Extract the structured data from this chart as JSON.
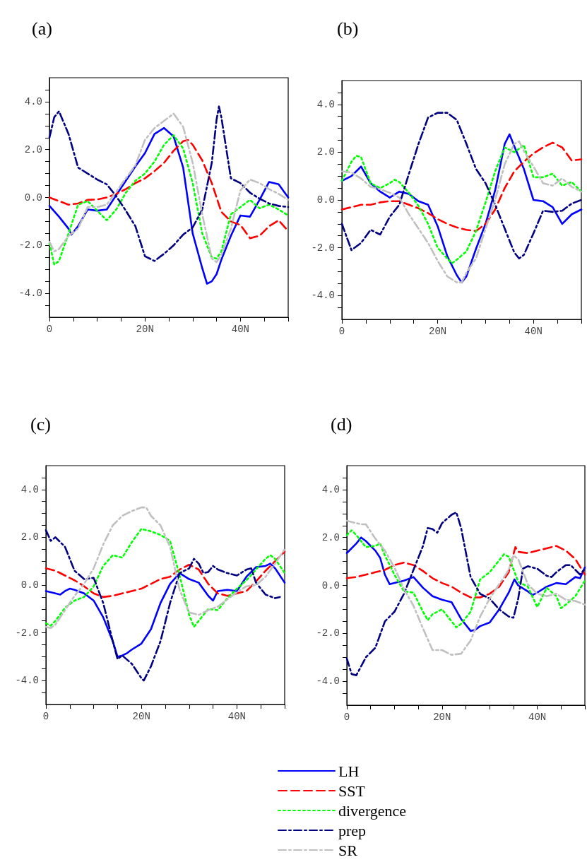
{
  "chart_data": [
    {
      "type": "line",
      "title": "(a)",
      "xlim": [
        0,
        50
      ],
      "ylim": [
        -5,
        5
      ],
      "xticks": [
        {
          "value": 0,
          "label": "0"
        },
        {
          "value": 5,
          "label": null
        },
        {
          "value": 10,
          "label": null
        },
        {
          "value": 15,
          "label": null
        },
        {
          "value": 20,
          "label": "20N"
        },
        {
          "value": 25,
          "label": null
        },
        {
          "value": 30,
          "label": null
        },
        {
          "value": 35,
          "label": null
        },
        {
          "value": 40,
          "label": "40N"
        },
        {
          "value": 45,
          "label": null
        },
        {
          "value": 50,
          "label": null
        }
      ],
      "yticks": [
        {
          "value": -4.5,
          "label": null
        },
        {
          "value": -4,
          "label": "-4.0"
        },
        {
          "value": -3.5,
          "label": null
        },
        {
          "value": -3,
          "label": null
        },
        {
          "value": -2.5,
          "label": null
        },
        {
          "value": -2,
          "label": "-2.0"
        },
        {
          "value": -1.5,
          "label": null
        },
        {
          "value": -1,
          "label": null
        },
        {
          "value": -0.5,
          "label": null
        },
        {
          "value": 0,
          "label": "0.0"
        },
        {
          "value": 0.5,
          "label": null
        },
        {
          "value": 1,
          "label": null
        },
        {
          "value": 1.5,
          "label": null
        },
        {
          "value": 2,
          "label": "2.0"
        },
        {
          "value": 2.5,
          "label": null
        },
        {
          "value": 3,
          "label": null
        },
        {
          "value": 3.5,
          "label": null
        },
        {
          "value": 4,
          "label": "4.0"
        },
        {
          "value": 4.5,
          "label": null
        }
      ],
      "grid": false,
      "legend": false,
      "series": [
        {
          "color": "#0000ff",
          "line_style": "solid",
          "x": [
            0,
            2,
            4,
            4.6,
            6,
            8,
            10,
            12,
            14,
            16,
            18,
            20,
            22,
            24,
            26,
            28,
            30,
            32,
            33,
            34,
            35,
            36,
            38,
            40,
            42,
            44,
            46,
            48,
            50
          ],
          "values": [
            -0.35,
            -0.8,
            -1.3,
            -1.55,
            -1.2,
            -0.5,
            -0.55,
            -0.5,
            0.1,
            0.7,
            1.3,
            1.85,
            2.65,
            2.9,
            2.55,
            1.25,
            -1.5,
            -2.95,
            -3.6,
            -3.5,
            -3.2,
            -2.6,
            -1.6,
            -0.75,
            -0.8,
            -0.1,
            0.65,
            0.55,
            0.0
          ]
        },
        {
          "color": "#ff0000",
          "line_style": "dashed",
          "x": [
            0,
            2,
            4,
            6,
            8,
            10,
            12,
            14,
            16,
            18,
            20,
            22,
            24,
            26,
            28,
            29,
            30,
            32,
            34,
            36,
            38,
            40,
            42,
            44,
            46,
            48,
            50
          ],
          "values": [
            0,
            -0.15,
            -0.3,
            -0.25,
            -0.1,
            -0.08,
            0,
            0.15,
            0.35,
            0.6,
            0.8,
            1.1,
            1.45,
            1.95,
            2.35,
            2.4,
            2.2,
            1.55,
            0.6,
            -0.6,
            -1.0,
            -1.15,
            -1.7,
            -1.6,
            -1.2,
            -0.95,
            -1.4
          ]
        },
        {
          "color": "#00ff00",
          "line_style": "dotted",
          "x": [
            0,
            1,
            2,
            4,
            6,
            8,
            10,
            12,
            14,
            16,
            18,
            20,
            22,
            24,
            26,
            28,
            30,
            32,
            34,
            35,
            36,
            38,
            40,
            42,
            44,
            46,
            48,
            50
          ],
          "values": [
            -1.9,
            -2.8,
            -2.65,
            -1.5,
            -0.3,
            -0.15,
            -0.55,
            -0.95,
            -0.5,
            0.2,
            0.7,
            1.0,
            1.5,
            2.2,
            2.6,
            2.05,
            0.6,
            -1.5,
            -2.5,
            -2.55,
            -2.25,
            -0.7,
            -0.4,
            -0.1,
            -0.45,
            -0.3,
            -0.5,
            -0.75
          ]
        },
        {
          "color": "#000080",
          "line_style": "dashdot",
          "x": [
            0,
            1,
            2,
            4,
            6,
            8,
            10,
            12,
            14,
            16,
            18,
            20,
            22,
            24,
            26,
            28,
            30,
            32,
            34,
            35,
            35.5,
            36,
            38,
            40,
            42,
            44,
            46,
            48,
            50
          ],
          "values": [
            2.5,
            3.35,
            3.6,
            2.65,
            1.25,
            1.0,
            0.75,
            0.55,
            0.05,
            -0.55,
            -1.2,
            -2.45,
            -2.65,
            -2.35,
            -2.0,
            -1.55,
            -1.25,
            -0.5,
            1.45,
            3.25,
            3.8,
            3.35,
            0.8,
            0.6,
            0.2,
            -0.05,
            -0.25,
            -0.35,
            -0.4
          ]
        },
        {
          "color": "#c0c0c0",
          "line_style": "dashdot",
          "x": [
            0,
            1,
            2,
            4,
            6,
            8,
            10,
            12,
            14,
            16,
            18,
            20,
            22,
            24,
            26,
            28,
            30,
            32,
            34,
            35,
            36,
            38,
            40,
            42,
            44,
            46,
            48,
            50
          ],
          "values": [
            -1.85,
            -2.25,
            -2.15,
            -1.6,
            -1.3,
            -0.4,
            -0.4,
            -0.3,
            0.25,
            0.8,
            1.35,
            2.4,
            2.9,
            3.2,
            3.5,
            2.95,
            1.45,
            -0.7,
            -2.55,
            -2.7,
            -2.4,
            -1.3,
            0.3,
            0.75,
            0.6,
            0.35,
            0.15,
            -0.1
          ]
        }
      ]
    },
    {
      "type": "line",
      "title": "(b)",
      "xlim": [
        0,
        50
      ],
      "ylim": [
        -5,
        5
      ],
      "xticks": [
        {
          "value": 0,
          "label": "0"
        },
        {
          "value": 5,
          "label": null
        },
        {
          "value": 10,
          "label": null
        },
        {
          "value": 15,
          "label": null
        },
        {
          "value": 20,
          "label": "20N"
        },
        {
          "value": 25,
          "label": null
        },
        {
          "value": 30,
          "label": null
        },
        {
          "value": 35,
          "label": null
        },
        {
          "value": 40,
          "label": "40N"
        },
        {
          "value": 45,
          "label": null
        },
        {
          "value": 50,
          "label": null
        }
      ],
      "yticks": [
        {
          "value": -4.5,
          "label": null
        },
        {
          "value": -4,
          "label": "-4.0"
        },
        {
          "value": -3.5,
          "label": null
        },
        {
          "value": -3,
          "label": null
        },
        {
          "value": -2.5,
          "label": null
        },
        {
          "value": -2,
          "label": "-2.0"
        },
        {
          "value": -1.5,
          "label": null
        },
        {
          "value": -1,
          "label": null
        },
        {
          "value": -0.5,
          "label": null
        },
        {
          "value": 0,
          "label": "0.0"
        },
        {
          "value": 0.5,
          "label": null
        },
        {
          "value": 1,
          "label": null
        },
        {
          "value": 1.5,
          "label": null
        },
        {
          "value": 2,
          "label": "2.0"
        },
        {
          "value": 2.5,
          "label": null
        },
        {
          "value": 3,
          "label": null
        },
        {
          "value": 3.5,
          "label": null
        },
        {
          "value": 4,
          "label": "4.0"
        },
        {
          "value": 4.5,
          "label": null
        }
      ],
      "grid": false,
      "legend": false,
      "series": [
        {
          "color": "#0000ff",
          "line_style": "solid",
          "x": [
            0,
            2,
            4,
            6,
            8,
            10,
            12,
            14,
            16,
            18,
            20,
            22,
            24,
            25,
            26,
            28,
            30,
            32,
            34,
            35,
            36,
            38,
            40,
            42,
            44,
            46,
            48,
            50
          ],
          "values": [
            0.8,
            1.0,
            1.4,
            0.7,
            0.35,
            0.1,
            0.35,
            0.25,
            -0.05,
            -0.2,
            -1.1,
            -2.35,
            -3.15,
            -3.45,
            -3.2,
            -2.05,
            -1.0,
            0.4,
            2.35,
            2.75,
            2.25,
            1.3,
            0.0,
            -0.05,
            -0.3,
            -1.0,
            -0.6,
            -0.4
          ]
        },
        {
          "color": "#ff0000",
          "line_style": "dashed",
          "x": [
            0,
            2,
            4,
            6,
            8,
            10,
            12,
            14,
            16,
            18,
            20,
            22,
            24,
            26,
            28,
            30,
            32,
            34,
            36,
            38,
            40,
            42,
            44,
            46,
            48,
            50
          ],
          "values": [
            -0.4,
            -0.3,
            -0.2,
            -0.2,
            -0.1,
            -0.05,
            -0.05,
            -0.2,
            -0.35,
            -0.55,
            -0.8,
            -1.0,
            -1.15,
            -1.25,
            -1.3,
            -1.0,
            -0.4,
            0.5,
            1.2,
            1.6,
            1.95,
            2.2,
            2.4,
            2.2,
            1.65,
            1.7
          ]
        },
        {
          "color": "#00ff00",
          "line_style": "dotted",
          "x": [
            0,
            2,
            3,
            4,
            6,
            8,
            10,
            11,
            12,
            14,
            16,
            18,
            20,
            22,
            23,
            24,
            26,
            28,
            30,
            32,
            34,
            36,
            38,
            40,
            42,
            44,
            46,
            48,
            50
          ],
          "values": [
            0.8,
            1.6,
            1.85,
            1.8,
            0.7,
            0.5,
            0.7,
            0.85,
            0.75,
            0.3,
            -0.25,
            -1.0,
            -2.0,
            -2.45,
            -2.65,
            -2.5,
            -2.15,
            -1.3,
            -0.1,
            1.2,
            2.2,
            2.0,
            2.3,
            0.95,
            0.95,
            1.1,
            0.6,
            0.75,
            0.35
          ]
        },
        {
          "color": "#000080",
          "line_style": "dashdot",
          "x": [
            0,
            2,
            4,
            6,
            8,
            10,
            12,
            14,
            16,
            18,
            20,
            22,
            24,
            26,
            28,
            30,
            32,
            34,
            36,
            37,
            38,
            40,
            42,
            44,
            46,
            48,
            50
          ],
          "values": [
            -1.0,
            -2.1,
            -1.8,
            -1.25,
            -1.45,
            -0.7,
            -0.2,
            1.1,
            2.35,
            3.45,
            3.65,
            3.65,
            3.35,
            2.35,
            1.3,
            0.7,
            -0.2,
            -1.2,
            -2.2,
            -2.45,
            -2.3,
            -1.4,
            -0.45,
            -0.5,
            -0.45,
            -0.15,
            0.0
          ]
        },
        {
          "color": "#c0c0c0",
          "line_style": "dashdot",
          "x": [
            0,
            2,
            4,
            6,
            8,
            10,
            12,
            14,
            16,
            18,
            20,
            22,
            24,
            25,
            26,
            28,
            30,
            32,
            34,
            36,
            37,
            38,
            40,
            42,
            44,
            46,
            48,
            50
          ],
          "values": [
            1.2,
            1.15,
            0.9,
            0.55,
            0.45,
            0.3,
            0.1,
            -0.6,
            -1.2,
            -1.8,
            -2.55,
            -3.2,
            -3.45,
            -3.45,
            -3.05,
            -2.45,
            -1.2,
            0.0,
            1.5,
            2.35,
            2.45,
            2.05,
            1.4,
            0.7,
            0.6,
            0.9,
            0.55,
            0.35
          ]
        }
      ]
    },
    {
      "type": "line",
      "title": "(c)",
      "xlim": [
        0,
        50
      ],
      "ylim": [
        -5,
        5
      ],
      "xticks": [
        {
          "value": 0,
          "label": "0"
        },
        {
          "value": 5,
          "label": null
        },
        {
          "value": 10,
          "label": null
        },
        {
          "value": 15,
          "label": null
        },
        {
          "value": 20,
          "label": "20N"
        },
        {
          "value": 25,
          "label": null
        },
        {
          "value": 30,
          "label": null
        },
        {
          "value": 35,
          "label": null
        },
        {
          "value": 40,
          "label": "40N"
        },
        {
          "value": 45,
          "label": null
        },
        {
          "value": 50,
          "label": null
        }
      ],
      "yticks": [
        {
          "value": -4.5,
          "label": null
        },
        {
          "value": -4,
          "label": "-4.0"
        },
        {
          "value": -3.5,
          "label": null
        },
        {
          "value": -3,
          "label": null
        },
        {
          "value": -2.5,
          "label": null
        },
        {
          "value": -2,
          "label": "-2.0"
        },
        {
          "value": -1.5,
          "label": null
        },
        {
          "value": -1,
          "label": null
        },
        {
          "value": -0.5,
          "label": null
        },
        {
          "value": 0,
          "label": "0.0"
        },
        {
          "value": 0.5,
          "label": null
        },
        {
          "value": 1,
          "label": null
        },
        {
          "value": 1.5,
          "label": null
        },
        {
          "value": 2,
          "label": "2.0"
        },
        {
          "value": 2.5,
          "label": null
        },
        {
          "value": 3,
          "label": null
        },
        {
          "value": 3.5,
          "label": null
        },
        {
          "value": 4,
          "label": "4.0"
        },
        {
          "value": 4.5,
          "label": null
        }
      ],
      "grid": false,
      "legend": false,
      "series": [
        {
          "color": "#0000ff",
          "line_style": "solid",
          "x": [
            0,
            2,
            3,
            4,
            5,
            6,
            8,
            10,
            12,
            14,
            15,
            16,
            17,
            18,
            20,
            22,
            24,
            26,
            28,
            30,
            32,
            34,
            35,
            36,
            38,
            40,
            42,
            44,
            46,
            47,
            48,
            50
          ],
          "values": [
            -0.25,
            -0.35,
            -0.4,
            -0.25,
            -0.15,
            -0.2,
            -0.35,
            -0.65,
            -1.35,
            -2.35,
            -3.0,
            -2.95,
            -2.85,
            -2.7,
            -2.45,
            -1.85,
            -0.75,
            0.05,
            0.5,
            0.25,
            0.1,
            -0.45,
            -0.65,
            -0.25,
            -0.2,
            -0.25,
            0.35,
            0.75,
            0.8,
            0.9,
            0.7,
            0.1
          ]
        },
        {
          "color": "#ff0000",
          "line_style": "dashed",
          "x": [
            0,
            2,
            4,
            6,
            8,
            10,
            12,
            14,
            16,
            18,
            20,
            22,
            24,
            26,
            28,
            30,
            32,
            34,
            36,
            38,
            40,
            42,
            44,
            46,
            48,
            50
          ],
          "values": [
            0.7,
            0.6,
            0.4,
            0.2,
            -0.05,
            -0.35,
            -0.5,
            -0.45,
            -0.35,
            -0.25,
            -0.15,
            0.05,
            0.25,
            0.35,
            0.65,
            0.85,
            0.65,
            0.05,
            -0.35,
            -0.45,
            -0.35,
            -0.25,
            0.15,
            0.6,
            1.0,
            1.4
          ]
        },
        {
          "color": "#00ff00",
          "line_style": "dotted",
          "x": [
            0,
            1,
            2,
            4,
            6,
            8,
            10,
            12,
            14,
            16,
            18,
            20,
            22,
            24,
            26,
            28,
            30,
            31,
            32,
            34,
            36,
            38,
            40,
            42,
            44,
            46,
            47,
            48,
            50
          ],
          "values": [
            -1.6,
            -1.7,
            -1.5,
            -0.95,
            -0.65,
            -0.5,
            -0.05,
            0.8,
            1.25,
            1.15,
            1.8,
            2.35,
            2.25,
            2.1,
            1.85,
            0.4,
            -1.25,
            -1.75,
            -1.5,
            -1.0,
            -1.05,
            -0.55,
            -0.15,
            0.2,
            0.65,
            1.1,
            1.25,
            1.1,
            0.5
          ]
        },
        {
          "color": "#000080",
          "line_style": "dashdot",
          "x": [
            0,
            1,
            2,
            4,
            6,
            8,
            10,
            12,
            14,
            15,
            16,
            18,
            20,
            20.5,
            22,
            24,
            26,
            28,
            30,
            31,
            32,
            33,
            34,
            35,
            36,
            38,
            40,
            42,
            43,
            44,
            46,
            48,
            49
          ],
          "values": [
            2.3,
            1.85,
            2.0,
            1.6,
            0.6,
            0.25,
            0.3,
            -0.75,
            -2.35,
            -3.1,
            -2.95,
            -3.3,
            -3.9,
            -4.0,
            -3.4,
            -2.35,
            -0.75,
            0.5,
            0.7,
            1.1,
            0.9,
            0.5,
            0.55,
            0.8,
            0.65,
            0.5,
            0.4,
            0.65,
            0.7,
            0.1,
            -0.4,
            -0.55,
            -0.5
          ]
        },
        {
          "color": "#c0c0c0",
          "line_style": "dashdot",
          "x": [
            0,
            1,
            2,
            4,
            6,
            8,
            10,
            12,
            14,
            16,
            18,
            20,
            21,
            22,
            24,
            26,
            28,
            30,
            32,
            34,
            36,
            38,
            40,
            42,
            44,
            46,
            48,
            50
          ],
          "values": [
            -1.75,
            -1.8,
            -1.65,
            -1.05,
            -0.45,
            0.05,
            0.7,
            1.7,
            2.5,
            2.9,
            3.1,
            3.25,
            3.25,
            2.9,
            2.5,
            1.6,
            -0.2,
            -1.15,
            -1.25,
            -1.05,
            -0.9,
            -0.6,
            -0.3,
            -0.05,
            0.0,
            0.35,
            0.9,
            1.5
          ]
        }
      ]
    },
    {
      "type": "line",
      "title": "(d)",
      "xlim": [
        0,
        50
      ],
      "ylim": [
        -5,
        5
      ],
      "xticks": [
        {
          "value": 0,
          "label": "0"
        },
        {
          "value": 5,
          "label": null
        },
        {
          "value": 10,
          "label": null
        },
        {
          "value": 15,
          "label": null
        },
        {
          "value": 20,
          "label": "20N"
        },
        {
          "value": 25,
          "label": null
        },
        {
          "value": 30,
          "label": null
        },
        {
          "value": 35,
          "label": null
        },
        {
          "value": 40,
          "label": "40N"
        },
        {
          "value": 45,
          "label": null
        },
        {
          "value": 50,
          "label": null
        }
      ],
      "yticks": [
        {
          "value": -4.5,
          "label": null
        },
        {
          "value": -4,
          "label": "-4.0"
        },
        {
          "value": -3.5,
          "label": null
        },
        {
          "value": -3,
          "label": null
        },
        {
          "value": -2.5,
          "label": null
        },
        {
          "value": -2,
          "label": "-2.0"
        },
        {
          "value": -1.5,
          "label": null
        },
        {
          "value": -1,
          "label": null
        },
        {
          "value": -0.5,
          "label": null
        },
        {
          "value": 0,
          "label": "0.0"
        },
        {
          "value": 0.5,
          "label": null
        },
        {
          "value": 1,
          "label": null
        },
        {
          "value": 1.5,
          "label": null
        },
        {
          "value": 2,
          "label": "2.0"
        },
        {
          "value": 2.5,
          "label": null
        },
        {
          "value": 3,
          "label": null
        },
        {
          "value": 3.5,
          "label": null
        },
        {
          "value": 4,
          "label": "4.0"
        },
        {
          "value": 4.5,
          "label": null
        }
      ],
      "grid": false,
      "legend": "bottom",
      "series": [
        {
          "name": "LH",
          "color": "#0000ff",
          "line_style": "solid",
          "x": [
            0,
            2,
            3,
            4,
            6,
            7,
            8,
            9,
            10,
            12,
            14,
            16,
            18,
            20,
            22,
            24,
            26,
            27,
            28,
            30,
            32,
            34,
            35.2,
            36,
            38,
            39,
            40,
            42,
            44,
            46,
            48,
            49,
            50
          ],
          "values": [
            1.35,
            1.75,
            2.0,
            1.85,
            1.45,
            1.15,
            0.45,
            0.05,
            0.1,
            0.2,
            0.35,
            -0.1,
            -0.45,
            -0.6,
            -0.7,
            -1.4,
            -1.9,
            -1.85,
            -1.7,
            -1.55,
            -1.0,
            -0.3,
            0.25,
            0.0,
            -0.25,
            -0.4,
            -0.3,
            -0.05,
            0.1,
            0.05,
            0.35,
            0.3,
            0.75
          ]
        },
        {
          "name": "SST",
          "color": "#ff0000",
          "line_style": "dashed",
          "x": [
            0,
            2,
            4,
            6,
            8,
            10,
            12,
            14,
            16,
            18,
            20,
            22,
            24,
            26,
            28,
            30,
            32,
            34,
            35.4,
            36,
            38,
            40,
            42,
            44,
            46,
            48,
            50
          ],
          "values": [
            0.3,
            0.35,
            0.45,
            0.55,
            0.65,
            0.85,
            0.95,
            0.85,
            0.6,
            0.3,
            0.1,
            -0.05,
            -0.3,
            -0.5,
            -0.5,
            -0.35,
            -0.05,
            0.55,
            1.6,
            1.4,
            1.35,
            1.45,
            1.55,
            1.65,
            1.45,
            1.1,
            0.45
          ]
        },
        {
          "name": "divergence",
          "color": "#00ff00",
          "line_style": "dotted",
          "x": [
            0,
            1,
            2,
            4,
            6,
            7,
            8,
            10,
            12,
            14,
            16,
            17,
            18,
            20,
            22,
            23,
            24,
            26,
            28,
            30,
            32,
            33,
            34,
            36,
            38,
            40,
            42,
            44,
            45,
            46,
            48,
            50
          ],
          "values": [
            2.1,
            2.3,
            2.1,
            1.6,
            1.65,
            1.75,
            1.25,
            0.45,
            -0.25,
            -0.3,
            -1.1,
            -1.45,
            -1.2,
            -1.0,
            -1.5,
            -1.75,
            -1.6,
            -1.1,
            0.25,
            0.55,
            1.05,
            1.3,
            1.2,
            0.15,
            -0.05,
            -0.9,
            -0.1,
            -0.45,
            -0.95,
            -0.8,
            -0.45,
            0.2
          ]
        },
        {
          "name": "prep",
          "color": "#000080",
          "line_style": "dashdot",
          "x": [
            0,
            1,
            2,
            4,
            6,
            8,
            10,
            12,
            14,
            16,
            17,
            18,
            19,
            20,
            22,
            23,
            24,
            26,
            28,
            30,
            32,
            34,
            35,
            36,
            37,
            38,
            40,
            42,
            43,
            44,
            46,
            47,
            48,
            49,
            50
          ],
          "values": [
            -3.05,
            -3.7,
            -3.75,
            -3.0,
            -2.6,
            -1.5,
            -1.1,
            -0.35,
            0.65,
            1.65,
            2.4,
            2.35,
            2.2,
            2.6,
            2.95,
            3.05,
            2.4,
            0.35,
            -0.35,
            -0.55,
            -1.0,
            -1.3,
            -1.35,
            -0.55,
            0.7,
            0.8,
            0.7,
            0.4,
            0.35,
            0.55,
            0.85,
            0.85,
            0.65,
            0.45,
            0.7
          ]
        },
        {
          "name": "SR",
          "color": "#c0c0c0",
          "line_style": "dashdot",
          "x": [
            0,
            2,
            3,
            4,
            6,
            8,
            10,
            12,
            14,
            16,
            18,
            20,
            22,
            24,
            26,
            28,
            30,
            32,
            34,
            35,
            36,
            38,
            40,
            42,
            44,
            46,
            48,
            50
          ],
          "values": [
            2.7,
            2.6,
            2.55,
            2.55,
            1.95,
            1.45,
            0.75,
            -0.15,
            -0.85,
            -1.8,
            -2.7,
            -2.7,
            -2.9,
            -2.85,
            -2.3,
            -1.3,
            -0.55,
            0.05,
            0.65,
            1.25,
            1.1,
            0.05,
            -0.35,
            -0.45,
            -0.35,
            -0.6,
            -0.65,
            -0.8
          ]
        }
      ]
    }
  ]
}
